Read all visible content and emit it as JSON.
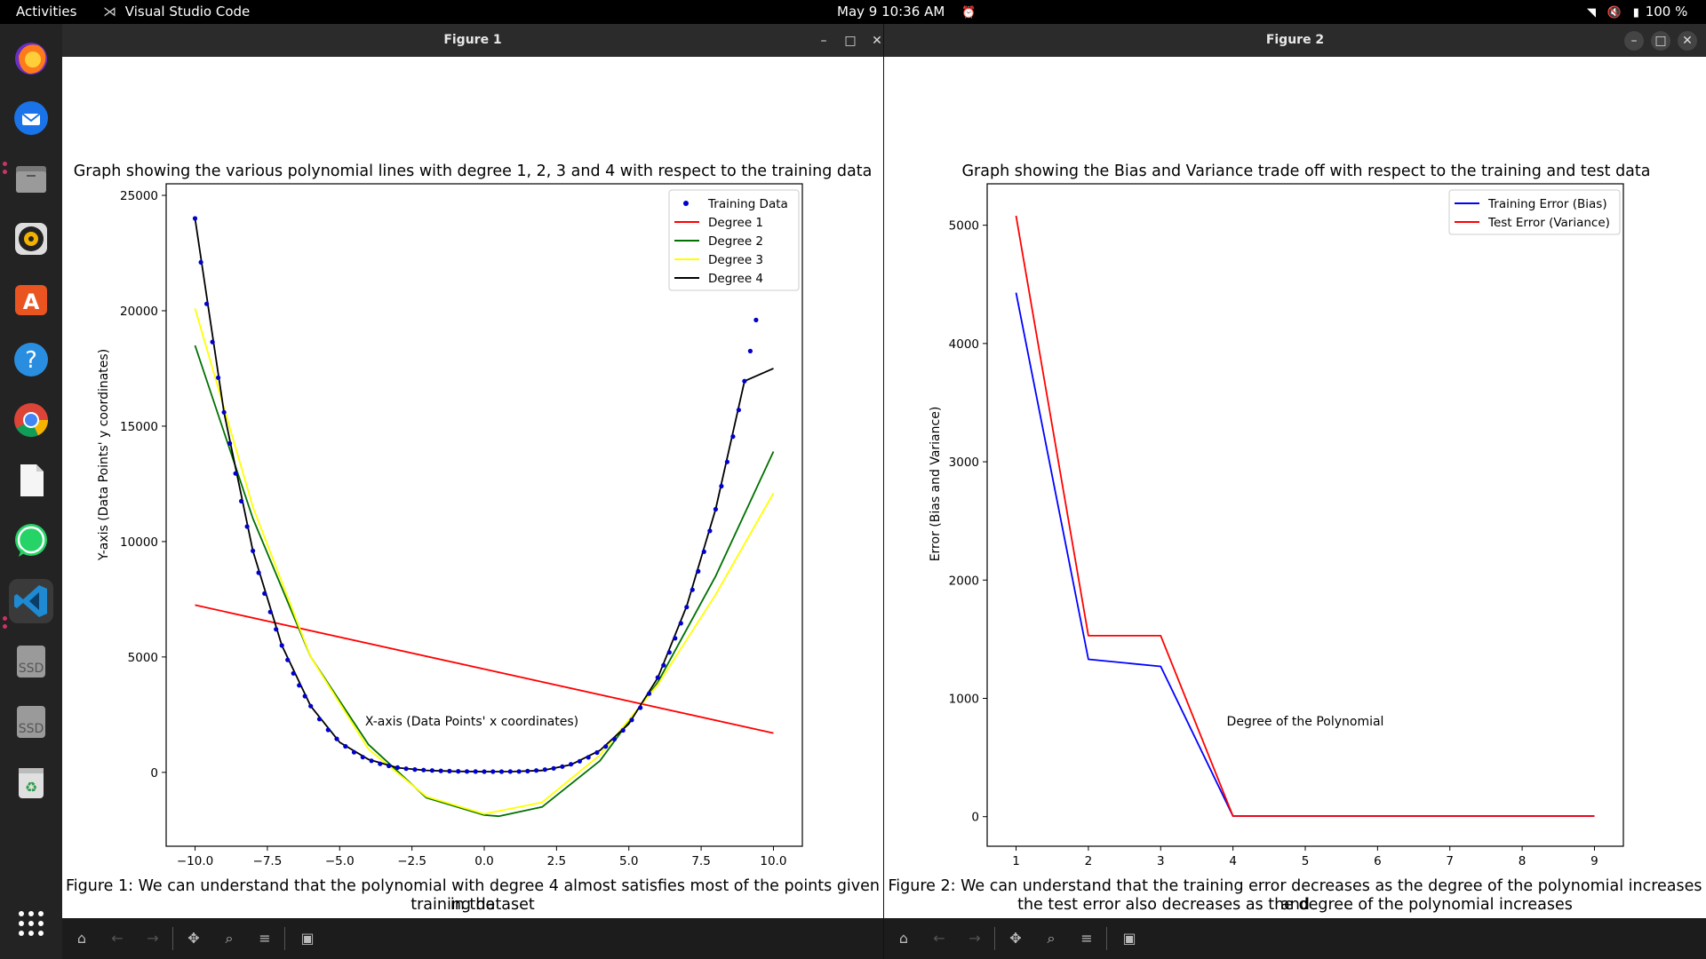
{
  "topbar": {
    "activities": "Activities",
    "app_name": "Visual Studio Code",
    "datetime": "May 9  10:36 AM",
    "battery": "100 %"
  },
  "dock": {
    "items": [
      {
        "name": "firefox-icon"
      },
      {
        "name": "thunderbird-icon"
      },
      {
        "name": "files-icon"
      },
      {
        "name": "rhythmbox-icon"
      },
      {
        "name": "app-center-icon"
      },
      {
        "name": "help-icon"
      },
      {
        "name": "chrome-icon"
      },
      {
        "name": "text-editor-icon"
      },
      {
        "name": "whatsapp-icon"
      },
      {
        "name": "vscode-icon"
      },
      {
        "name": "ssd-drive-icon",
        "label": "SSD"
      },
      {
        "name": "ssd-drive-icon",
        "label": "SSD"
      },
      {
        "name": "trash-icon"
      }
    ]
  },
  "window1": {
    "title": "Figure 1",
    "caption_line1": "Figure 1: We can understand that the polynomial with degree 4 almost satisfies most of the points given in the",
    "caption_line2": "training dataset"
  },
  "window2": {
    "title": "Figure 2",
    "caption_line1": "Figure 2: We can understand that the training error decreases as the degree of the polynomial increases and",
    "caption_line2": "the test error also decreases as the degree of the polynomial increases"
  },
  "colors": {
    "training_data": "#0000cc",
    "degree1": "#ff0000",
    "degree2": "#007000",
    "degree3": "#ffff00",
    "degree4": "#000000",
    "training_error": "#0000ff",
    "test_error": "#ff0000"
  },
  "chart_data": [
    {
      "type": "line",
      "title": "Graph showing the various polynomial lines with degree 1, 2, 3 and 4 with respect to the training data",
      "xlabel": "X-axis (Data Points' x coordinates)",
      "ylabel": "Y-axis (Data Points' y coordinates)",
      "xlim": [
        -11,
        11
      ],
      "ylim": [
        -3200,
        25500
      ],
      "xticks": [
        -10,
        -7.5,
        -5,
        -2.5,
        0,
        2.5,
        5,
        7.5,
        10
      ],
      "xtick_labels": [
        "−10.0",
        "−7.5",
        "−5.0",
        "−2.5",
        "0.0",
        "2.5",
        "5.0",
        "7.5",
        "10.0"
      ],
      "yticks": [
        0,
        5000,
        10000,
        15000,
        20000,
        25000
      ],
      "ytick_labels": [
        "0",
        "5000",
        "10000",
        "15000",
        "20000",
        "25000"
      ],
      "legend_position": "top-right",
      "scatter": {
        "name": "Training Data",
        "x": [
          -10,
          -9.8,
          -9.6,
          -9.4,
          -9.2,
          -9.0,
          -8.8,
          -8.6,
          -8.4,
          -8.2,
          -8.0,
          -7.8,
          -7.6,
          -7.4,
          -7.2,
          -7.0,
          -6.8,
          -6.6,
          -6.4,
          -6.2,
          -6.0,
          -5.7,
          -5.4,
          -5.1,
          -4.8,
          -4.5,
          -4.2,
          -3.9,
          -3.6,
          -3.3,
          -3.0,
          -2.7,
          -2.4,
          -2.1,
          -1.8,
          -1.5,
          -1.2,
          -0.9,
          -0.6,
          -0.3,
          0.0,
          0.3,
          0.6,
          0.9,
          1.2,
          1.5,
          1.8,
          2.1,
          2.4,
          2.7,
          3.0,
          3.3,
          3.6,
          3.9,
          4.2,
          4.5,
          4.8,
          5.1,
          5.4,
          5.7,
          6.0,
          6.2,
          6.4,
          6.6,
          6.8,
          7.0,
          7.2,
          7.4,
          7.6,
          7.8,
          8.0,
          8.2,
          8.4,
          8.6,
          8.8,
          9.0,
          9.2,
          9.4,
          9.6,
          9.8
        ],
        "y": [
          24000,
          22100,
          20300,
          18650,
          17100,
          15600,
          14250,
          12950,
          11750,
          10650,
          9600,
          8650,
          7750,
          6950,
          6200,
          5500,
          4870,
          4290,
          3770,
          3300,
          2870,
          2310,
          1840,
          1450,
          1130,
          870,
          660,
          500,
          370,
          280,
          210,
          160,
          125,
          100,
          82,
          68,
          56,
          47,
          40,
          35,
          30,
          30,
          32,
          35,
          40,
          55,
          80,
          120,
          175,
          250,
          350,
          480,
          650,
          860,
          1120,
          1440,
          1820,
          2270,
          2800,
          3410,
          4110,
          4640,
          5200,
          5810,
          6460,
          7160,
          7910,
          8710,
          9560,
          10460,
          11400,
          12400,
          13450,
          14550,
          15700,
          16950,
          18250,
          19600,
          21000,
          22500
        ]
      },
      "series": [
        {
          "name": "Degree 1",
          "x": [
            -10,
            10
          ],
          "y": [
            7250,
            1700
          ]
        },
        {
          "name": "Degree 2",
          "x": [
            -10,
            -8,
            -6,
            -4,
            -2,
            0,
            0.5,
            2,
            4,
            6,
            8,
            10
          ],
          "y": [
            18500,
            11000,
            5000,
            1200,
            -1100,
            -1850,
            -1900,
            -1500,
            500,
            3900,
            8500,
            13900
          ]
        },
        {
          "name": "Degree 3",
          "x": [
            -10,
            -8,
            -6,
            -4,
            -2,
            0,
            2,
            4,
            6,
            8,
            10
          ],
          "y": [
            20100,
            11500,
            5000,
            1000,
            -1050,
            -1800,
            -1300,
            750,
            3800,
            7700,
            12100
          ]
        },
        {
          "name": "Degree 4",
          "x": [
            -10,
            -9,
            -8,
            -7,
            -6,
            -5,
            -4,
            -3,
            -2,
            -1,
            0,
            1,
            2,
            3,
            4,
            5,
            6,
            7,
            8,
            9,
            10
          ],
          "y": [
            24000,
            15600,
            9600,
            5500,
            2870,
            1300,
            560,
            200,
            85,
            45,
            30,
            35,
            80,
            330,
            950,
            2100,
            4100,
            7200,
            11400,
            16950,
            17500
          ]
        }
      ]
    },
    {
      "type": "line",
      "title": "Graph showing the Bias and Variance trade off with respect to the training and test data",
      "xlabel": "Degree of the Polynomial",
      "ylabel": "Error (Bias and Variance)",
      "xlim": [
        0.6,
        9.4
      ],
      "ylim": [
        -250,
        5350
      ],
      "xticks": [
        1,
        2,
        3,
        4,
        5,
        6,
        7,
        8,
        9
      ],
      "xtick_labels": [
        "1",
        "2",
        "3",
        "4",
        "5",
        "6",
        "7",
        "8",
        "9"
      ],
      "yticks": [
        0,
        1000,
        2000,
        3000,
        4000,
        5000
      ],
      "ytick_labels": [
        "0",
        "1000",
        "2000",
        "3000",
        "4000",
        "5000"
      ],
      "legend_position": "top-right",
      "series": [
        {
          "name": "Training Error (Bias)",
          "x": [
            1,
            2,
            3,
            4,
            5,
            6,
            7,
            8,
            9
          ],
          "y": [
            4430,
            1330,
            1270,
            5,
            5,
            5,
            5,
            5,
            5
          ]
        },
        {
          "name": "Test Error (Variance)",
          "x": [
            1,
            2,
            3,
            4,
            5,
            6,
            7,
            8,
            9
          ],
          "y": [
            5080,
            1530,
            1530,
            5,
            5,
            5,
            5,
            5,
            5
          ]
        }
      ]
    }
  ]
}
